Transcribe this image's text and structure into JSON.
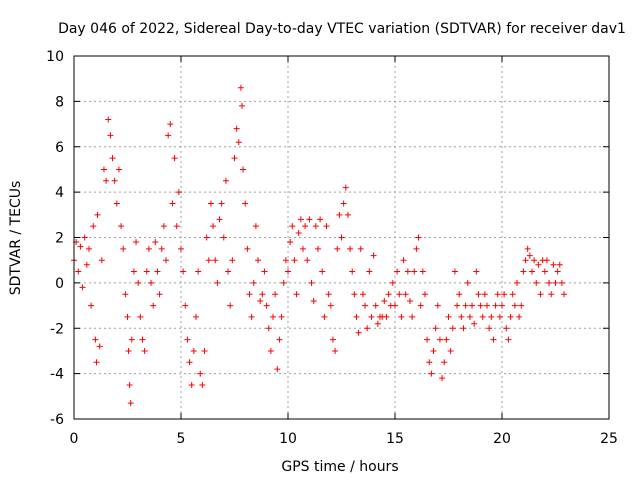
{
  "chart_data": {
    "type": "scatter",
    "title": "Day 046 of 2022, Sidereal Day-to-day VTEC variation (SDTVAR) for receiver dav1",
    "xlabel": "GPS time / hours",
    "ylabel": "SDTVAR / TECUs",
    "xlim": [
      0,
      25
    ],
    "ylim": [
      -6,
      10
    ],
    "xticks": [
      0,
      5,
      10,
      15,
      20,
      25
    ],
    "yticks": [
      -6,
      -4,
      -2,
      0,
      2,
      4,
      6,
      8,
      10
    ],
    "grid": true,
    "marker": "+",
    "color": "#ff0000",
    "series": [
      {
        "name": "SDTVAR dav1",
        "points": [
          [
            0.0,
            1.0
          ],
          [
            0.1,
            1.8
          ],
          [
            0.2,
            0.5
          ],
          [
            0.3,
            1.6
          ],
          [
            0.4,
            -0.2
          ],
          [
            0.5,
            2.0
          ],
          [
            0.6,
            0.8
          ],
          [
            0.7,
            1.5
          ],
          [
            0.8,
            -1.0
          ],
          [
            0.9,
            2.5
          ],
          [
            1.0,
            -2.5
          ],
          [
            1.05,
            -3.5
          ],
          [
            1.1,
            3.0
          ],
          [
            1.2,
            -2.8
          ],
          [
            1.3,
            1.0
          ],
          [
            1.4,
            5.0
          ],
          [
            1.5,
            4.5
          ],
          [
            1.6,
            7.2
          ],
          [
            1.7,
            6.5
          ],
          [
            1.8,
            5.5
          ],
          [
            1.9,
            4.5
          ],
          [
            2.0,
            3.5
          ],
          [
            2.1,
            5.0
          ],
          [
            2.2,
            2.5
          ],
          [
            2.3,
            1.5
          ],
          [
            2.4,
            -0.5
          ],
          [
            2.5,
            -1.5
          ],
          [
            2.55,
            -3.0
          ],
          [
            2.6,
            -4.5
          ],
          [
            2.65,
            -5.3
          ],
          [
            2.7,
            -2.5
          ],
          [
            2.8,
            0.5
          ],
          [
            2.9,
            1.8
          ],
          [
            3.0,
            0.0
          ],
          [
            3.1,
            -1.5
          ],
          [
            3.2,
            -2.5
          ],
          [
            3.3,
            -3.0
          ],
          [
            3.4,
            0.5
          ],
          [
            3.5,
            1.5
          ],
          [
            3.6,
            0.0
          ],
          [
            3.7,
            -1.0
          ],
          [
            3.8,
            1.8
          ],
          [
            3.9,
            0.5
          ],
          [
            4.0,
            -0.5
          ],
          [
            4.1,
            1.5
          ],
          [
            4.2,
            2.5
          ],
          [
            4.3,
            1.0
          ],
          [
            4.4,
            6.5
          ],
          [
            4.5,
            7.0
          ],
          [
            4.6,
            3.5
          ],
          [
            4.7,
            5.5
          ],
          [
            4.8,
            2.5
          ],
          [
            4.9,
            4.0
          ],
          [
            5.0,
            1.5
          ],
          [
            5.1,
            0.5
          ],
          [
            5.2,
            -1.0
          ],
          [
            5.3,
            -2.5
          ],
          [
            5.4,
            -3.5
          ],
          [
            5.5,
            -4.5
          ],
          [
            5.6,
            -3.0
          ],
          [
            5.7,
            -1.5
          ],
          [
            5.8,
            0.5
          ],
          [
            5.9,
            -4.0
          ],
          [
            6.0,
            -4.5
          ],
          [
            6.1,
            -3.0
          ],
          [
            6.2,
            2.0
          ],
          [
            6.3,
            1.0
          ],
          [
            6.4,
            3.5
          ],
          [
            6.5,
            2.5
          ],
          [
            6.6,
            1.0
          ],
          [
            6.7,
            0.0
          ],
          [
            6.8,
            2.8
          ],
          [
            6.9,
            3.5
          ],
          [
            7.0,
            2.0
          ],
          [
            7.1,
            4.5
          ],
          [
            7.2,
            0.5
          ],
          [
            7.3,
            -1.0
          ],
          [
            7.4,
            1.0
          ],
          [
            7.5,
            5.5
          ],
          [
            7.6,
            6.8
          ],
          [
            7.7,
            6.2
          ],
          [
            7.8,
            8.6
          ],
          [
            7.85,
            7.8
          ],
          [
            7.9,
            5.0
          ],
          [
            8.0,
            3.5
          ],
          [
            8.1,
            1.5
          ],
          [
            8.2,
            -0.5
          ],
          [
            8.3,
            -1.5
          ],
          [
            8.4,
            0.0
          ],
          [
            8.5,
            2.5
          ],
          [
            8.6,
            1.0
          ],
          [
            8.7,
            -0.8
          ],
          [
            8.8,
            -0.5
          ],
          [
            8.9,
            0.5
          ],
          [
            9.0,
            -1.0
          ],
          [
            9.1,
            -2.0
          ],
          [
            9.2,
            -3.0
          ],
          [
            9.3,
            -1.5
          ],
          [
            9.4,
            -0.5
          ],
          [
            9.5,
            -3.8
          ],
          [
            9.6,
            -2.5
          ],
          [
            9.7,
            -1.5
          ],
          [
            9.8,
            0.0
          ],
          [
            9.9,
            1.0
          ],
          [
            10.0,
            0.5
          ],
          [
            10.1,
            1.8
          ],
          [
            10.2,
            2.5
          ],
          [
            10.3,
            1.0
          ],
          [
            10.4,
            -0.5
          ],
          [
            10.5,
            2.2
          ],
          [
            10.6,
            2.8
          ],
          [
            10.7,
            1.5
          ],
          [
            10.8,
            2.5
          ],
          [
            10.9,
            1.0
          ],
          [
            11.0,
            2.8
          ],
          [
            11.1,
            0.0
          ],
          [
            11.2,
            -0.8
          ],
          [
            11.3,
            2.5
          ],
          [
            11.4,
            1.5
          ],
          [
            11.5,
            2.8
          ],
          [
            11.6,
            0.5
          ],
          [
            11.7,
            -1.5
          ],
          [
            11.8,
            2.5
          ],
          [
            11.9,
            -0.5
          ],
          [
            12.0,
            -1.0
          ],
          [
            12.1,
            -2.5
          ],
          [
            12.2,
            -3.0
          ],
          [
            12.3,
            1.5
          ],
          [
            12.4,
            3.0
          ],
          [
            12.5,
            2.0
          ],
          [
            12.6,
            3.5
          ],
          [
            12.7,
            4.2
          ],
          [
            12.8,
            3.0
          ],
          [
            12.9,
            1.5
          ],
          [
            13.0,
            0.5
          ],
          [
            13.1,
            -0.5
          ],
          [
            13.2,
            -1.5
          ],
          [
            13.3,
            -2.2
          ],
          [
            13.4,
            1.5
          ],
          [
            13.5,
            -0.5
          ],
          [
            13.6,
            -1.0
          ],
          [
            13.7,
            -2.0
          ],
          [
            13.8,
            0.5
          ],
          [
            13.9,
            -1.5
          ],
          [
            14.0,
            1.2
          ],
          [
            14.1,
            -1.0
          ],
          [
            14.2,
            -1.8
          ],
          [
            14.3,
            -1.5
          ],
          [
            14.4,
            -1.5
          ],
          [
            14.5,
            -0.8
          ],
          [
            14.6,
            -1.5
          ],
          [
            14.7,
            -0.5
          ],
          [
            14.8,
            -1.0
          ],
          [
            14.9,
            0.0
          ],
          [
            15.0,
            -1.0
          ],
          [
            15.1,
            0.5
          ],
          [
            15.2,
            -0.5
          ],
          [
            15.3,
            -1.5
          ],
          [
            15.4,
            1.0
          ],
          [
            15.5,
            -0.5
          ],
          [
            15.6,
            0.5
          ],
          [
            15.7,
            -0.8
          ],
          [
            15.8,
            -1.5
          ],
          [
            15.9,
            0.5
          ],
          [
            16.0,
            1.5
          ],
          [
            16.1,
            2.0
          ],
          [
            16.2,
            -1.0
          ],
          [
            16.3,
            0.5
          ],
          [
            16.4,
            -0.5
          ],
          [
            16.5,
            -2.5
          ],
          [
            16.6,
            -3.5
          ],
          [
            16.7,
            -4.0
          ],
          [
            16.8,
            -3.0
          ],
          [
            16.9,
            -2.0
          ],
          [
            17.0,
            -1.0
          ],
          [
            17.1,
            -2.5
          ],
          [
            17.2,
            -4.2
          ],
          [
            17.3,
            -3.5
          ],
          [
            17.4,
            -2.5
          ],
          [
            17.5,
            -1.5
          ],
          [
            17.6,
            -3.0
          ],
          [
            17.7,
            -2.0
          ],
          [
            17.8,
            0.5
          ],
          [
            17.9,
            -1.0
          ],
          [
            18.0,
            -0.5
          ],
          [
            18.1,
            -1.5
          ],
          [
            18.2,
            -2.0
          ],
          [
            18.3,
            -1.0
          ],
          [
            18.4,
            0.0
          ],
          [
            18.5,
            -1.5
          ],
          [
            18.6,
            -1.0
          ],
          [
            18.7,
            -1.8
          ],
          [
            18.8,
            0.5
          ],
          [
            18.9,
            -0.5
          ],
          [
            19.0,
            -1.0
          ],
          [
            19.1,
            -1.5
          ],
          [
            19.2,
            -0.5
          ],
          [
            19.3,
            -1.0
          ],
          [
            19.4,
            -2.0
          ],
          [
            19.5,
            -1.5
          ],
          [
            19.6,
            -2.5
          ],
          [
            19.7,
            -1.0
          ],
          [
            19.8,
            -0.5
          ],
          [
            19.9,
            -1.5
          ],
          [
            20.0,
            -1.0
          ],
          [
            20.1,
            -0.5
          ],
          [
            20.2,
            -2.0
          ],
          [
            20.3,
            -2.5
          ],
          [
            20.4,
            -1.5
          ],
          [
            20.5,
            -0.5
          ],
          [
            20.6,
            -1.0
          ],
          [
            20.7,
            0.0
          ],
          [
            20.8,
            -1.5
          ],
          [
            20.9,
            -1.0
          ],
          [
            21.0,
            0.5
          ],
          [
            21.1,
            1.0
          ],
          [
            21.2,
            1.5
          ],
          [
            21.3,
            1.2
          ],
          [
            21.4,
            0.5
          ],
          [
            21.5,
            1.0
          ],
          [
            21.6,
            0.0
          ],
          [
            21.7,
            0.8
          ],
          [
            21.8,
            -0.5
          ],
          [
            21.9,
            1.0
          ],
          [
            22.0,
            0.5
          ],
          [
            22.1,
            1.0
          ],
          [
            22.2,
            0.0
          ],
          [
            22.3,
            -0.5
          ],
          [
            22.4,
            0.8
          ],
          [
            22.5,
            0.0
          ],
          [
            22.6,
            0.5
          ],
          [
            22.7,
            0.8
          ],
          [
            22.8,
            0.0
          ],
          [
            22.9,
            -0.5
          ]
        ]
      }
    ]
  }
}
